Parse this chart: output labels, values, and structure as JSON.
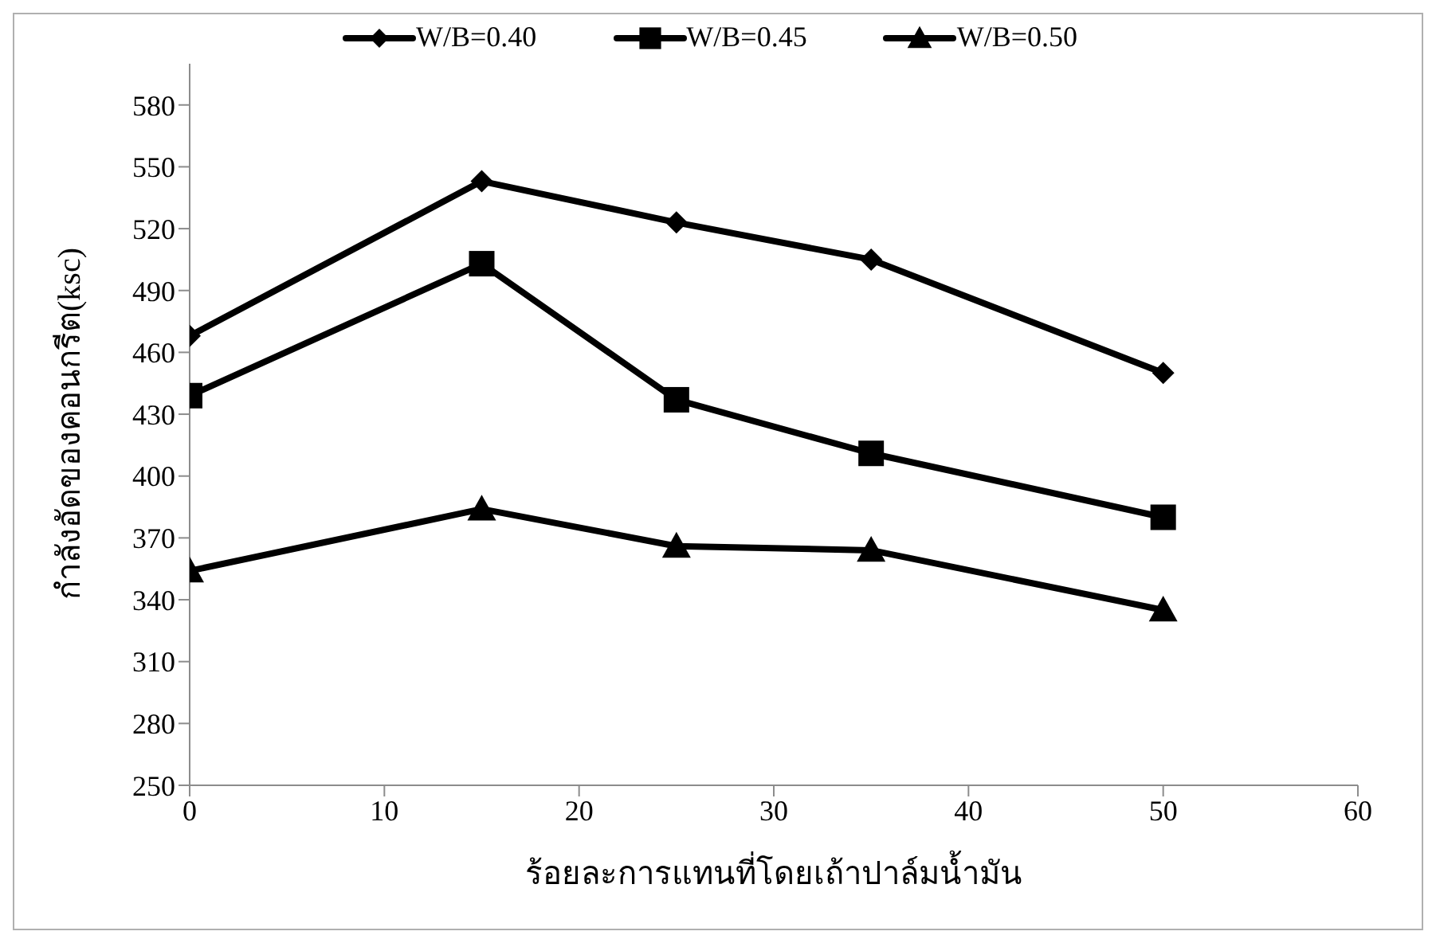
{
  "chart_data": {
    "type": "line",
    "xlabel": "ร้อยละการแทนที่โดยเถ้าปาล์มน้ำมัน",
    "ylabel": "กำลังอัดของคอนกรีต(ksc)",
    "x": [
      0,
      15,
      25,
      35,
      50
    ],
    "series": [
      {
        "name": "W/B=0.40",
        "color": "#000000",
        "marker": "diamond",
        "values": [
          468,
          543,
          523,
          505,
          450
        ]
      },
      {
        "name": "W/B=0.45",
        "color": "#000000",
        "marker": "square",
        "values": [
          439,
          503,
          437,
          411,
          380
        ]
      },
      {
        "name": "W/B=0.50",
        "color": "#000000",
        "marker": "triangle",
        "values": [
          354,
          384,
          366,
          364,
          335
        ]
      }
    ],
    "xlim": [
      0,
      60
    ],
    "xticks": [
      0,
      10,
      20,
      30,
      40,
      50,
      60
    ],
    "ylim": [
      250,
      600
    ],
    "yticks": [
      250,
      280,
      310,
      340,
      370,
      400,
      430,
      460,
      490,
      520,
      550,
      580
    ],
    "grid": false,
    "legend": "top",
    "line_style": "solid"
  }
}
